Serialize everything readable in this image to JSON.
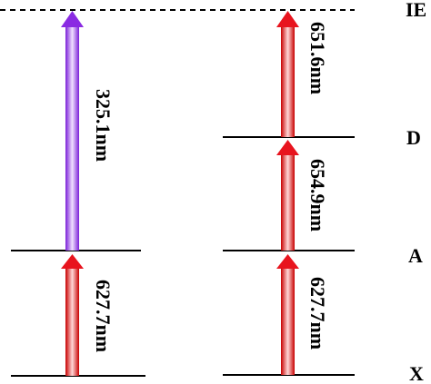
{
  "levels": {
    "ie": "IE",
    "d": "D",
    "a": "A",
    "x": "X"
  },
  "transitions": [
    {
      "label": "627.7nm",
      "color": "#e8141e",
      "from": "X",
      "to": "A",
      "column": "left"
    },
    {
      "label": "325.1nm",
      "color": "#8a2be2",
      "from": "A",
      "to": "IE",
      "column": "left"
    },
    {
      "label": "627.7nm",
      "color": "#e8141e",
      "from": "X",
      "to": "A",
      "column": "right"
    },
    {
      "label": "654.9nm",
      "color": "#e8141e",
      "from": "A",
      "to": "D",
      "column": "right"
    },
    {
      "label": "651.6nm",
      "color": "#e8141e",
      "from": "D",
      "to": "IE",
      "column": "right"
    }
  ],
  "colors": {
    "line": "#000000",
    "red": "#e8141e",
    "violet": "#8a2be2"
  }
}
